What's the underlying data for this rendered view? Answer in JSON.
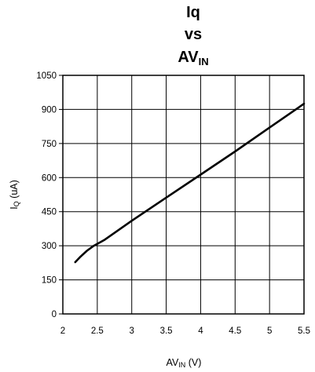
{
  "chart_data": {
    "type": "line",
    "title": {
      "line1": "Iq",
      "line2": "vs",
      "line3_main": "AV",
      "line3_sub": "IN"
    },
    "xlabel": {
      "main": "AV",
      "sub": "IN",
      "unit": " (V)"
    },
    "ylabel": {
      "main": "I",
      "sub": "Q",
      "unit": " (uA)"
    },
    "xlim": [
      2,
      5.5
    ],
    "ylim": [
      0,
      1050
    ],
    "xticks": [
      "2",
      "2.5",
      "3",
      "3.5",
      "4",
      "4.5",
      "5",
      "5.5"
    ],
    "yticks": [
      "0",
      "150",
      "300",
      "450",
      "600",
      "750",
      "900",
      "1050"
    ],
    "grid": true,
    "series": [
      {
        "color": "#000000",
        "x": [
          2.18,
          2.25,
          2.35,
          2.45,
          2.6,
          3.0,
          3.5,
          4.0,
          4.5,
          5.0,
          5.5
        ],
        "y": [
          228,
          250,
          278,
          300,
          325,
          410,
          512,
          613,
          715,
          820,
          925
        ]
      }
    ]
  }
}
